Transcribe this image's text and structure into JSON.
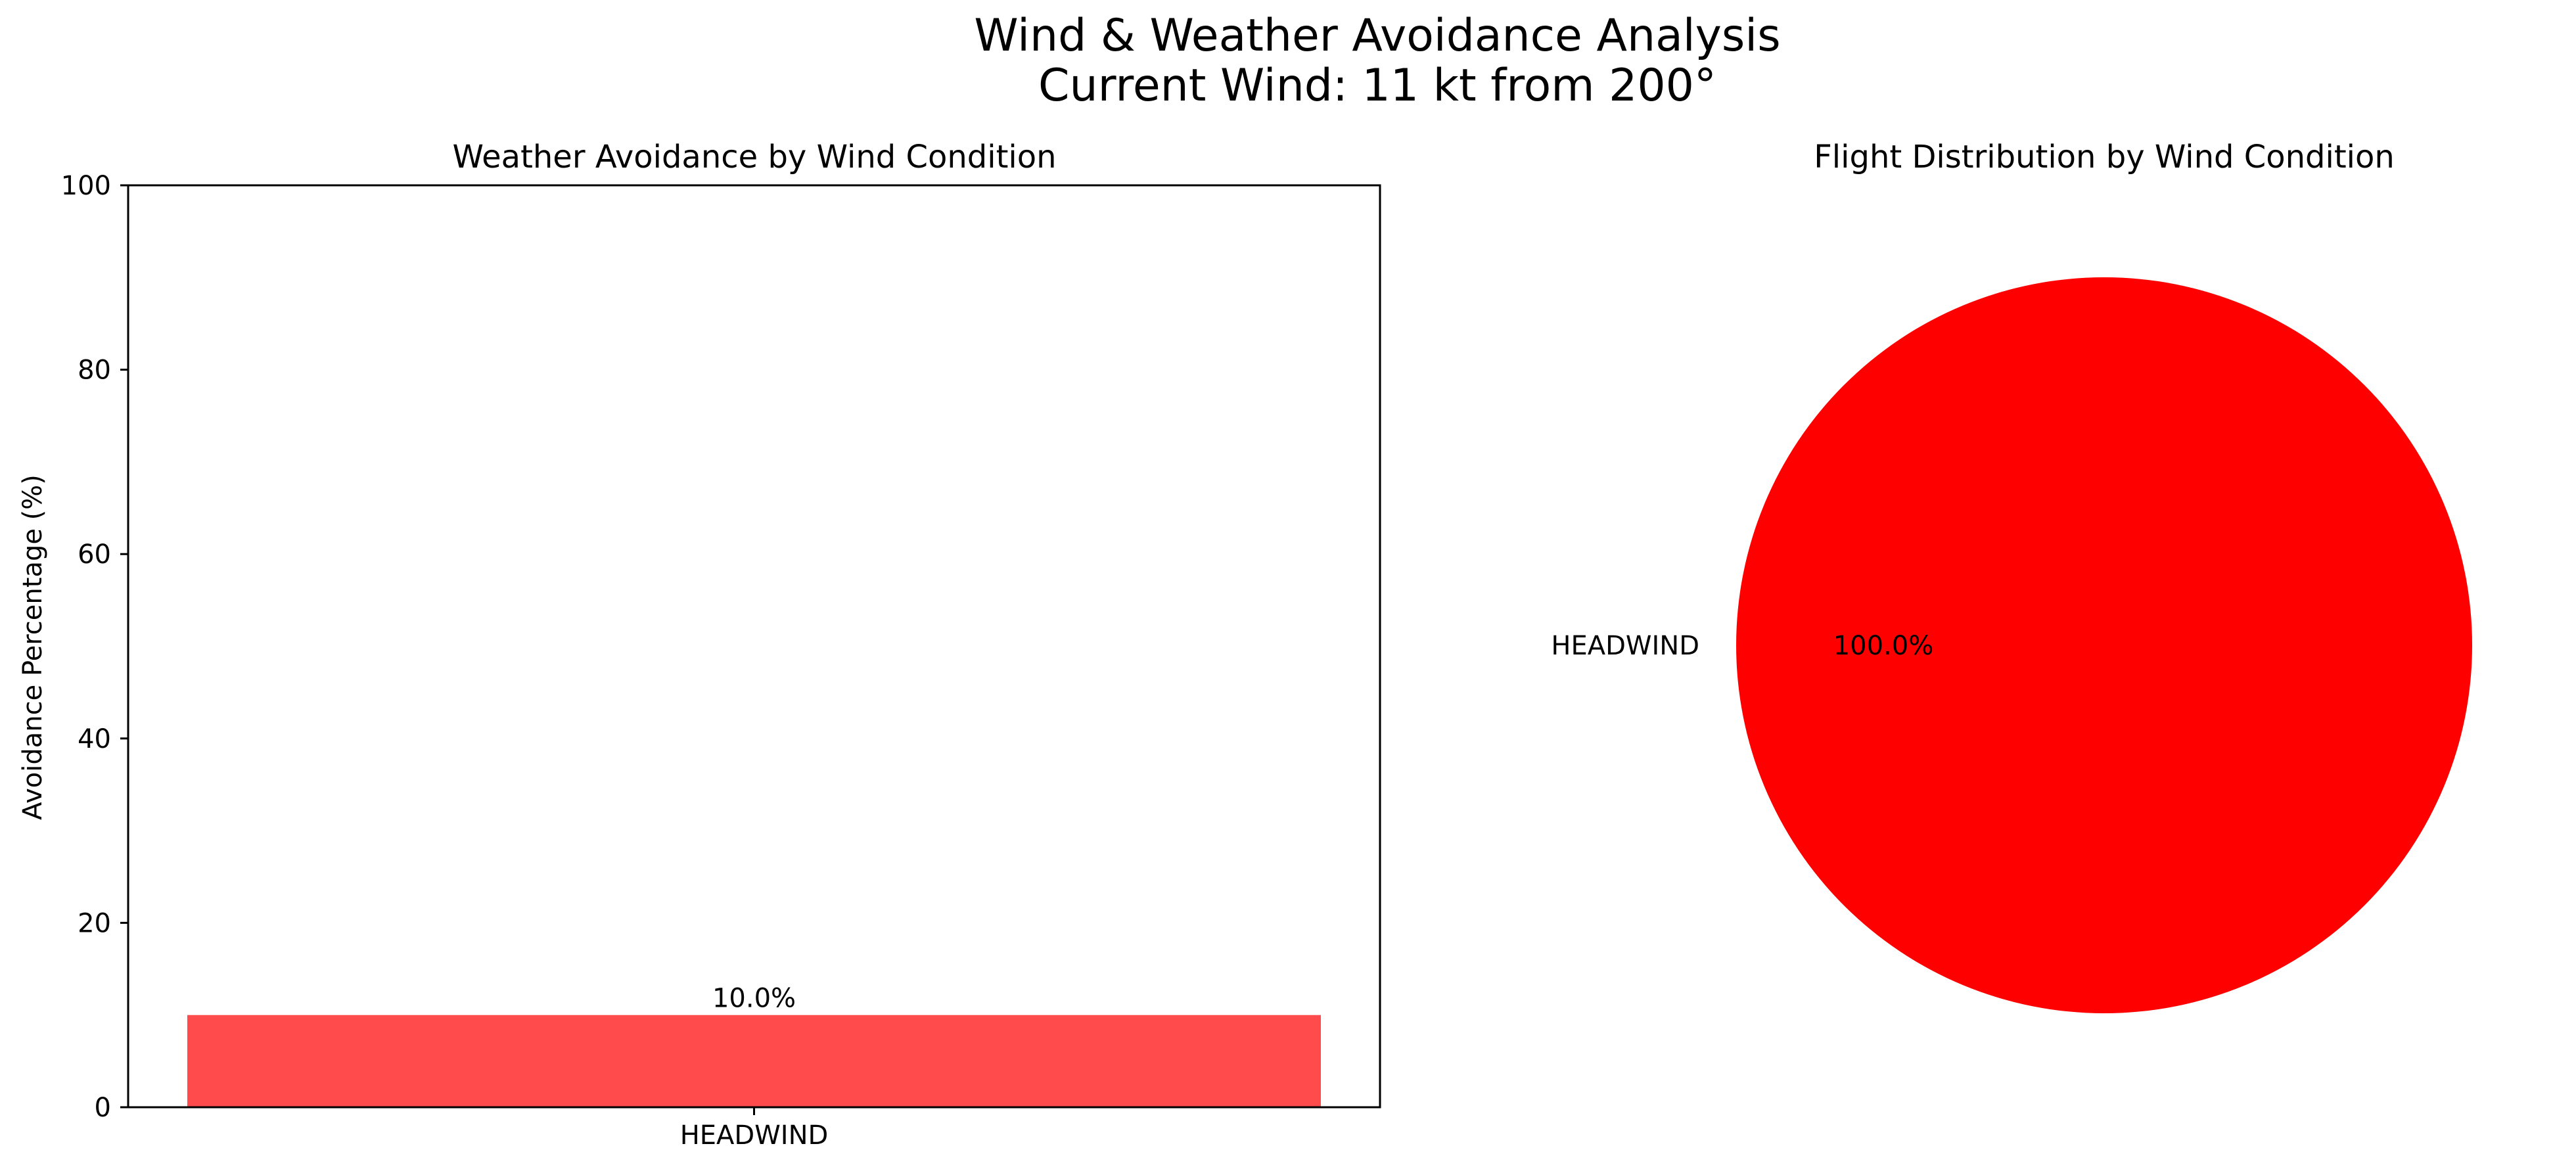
{
  "figure": {
    "title_line1": "Wind & Weather Avoidance Analysis",
    "title_line2": "Current Wind: 11 kt from 200°"
  },
  "chart_data": [
    {
      "type": "bar",
      "title": "Weather Avoidance by Wind Condition",
      "xlabel": "",
      "ylabel": "Avoidance Percentage (%)",
      "categories": [
        "HEADWIND"
      ],
      "values": [
        10.0
      ],
      "value_labels": [
        "10.0%"
      ],
      "ylim": [
        0,
        100
      ],
      "yticks": [
        0,
        20,
        40,
        60,
        80,
        100
      ],
      "grid": false,
      "bar_color": "#ff4b4b"
    },
    {
      "type": "pie",
      "title": "Flight Distribution by Wind Condition",
      "labels": [
        "HEADWIND"
      ],
      "values": [
        100.0
      ],
      "value_labels": [
        "100.0%"
      ],
      "colors": [
        "#ff0000"
      ]
    }
  ]
}
